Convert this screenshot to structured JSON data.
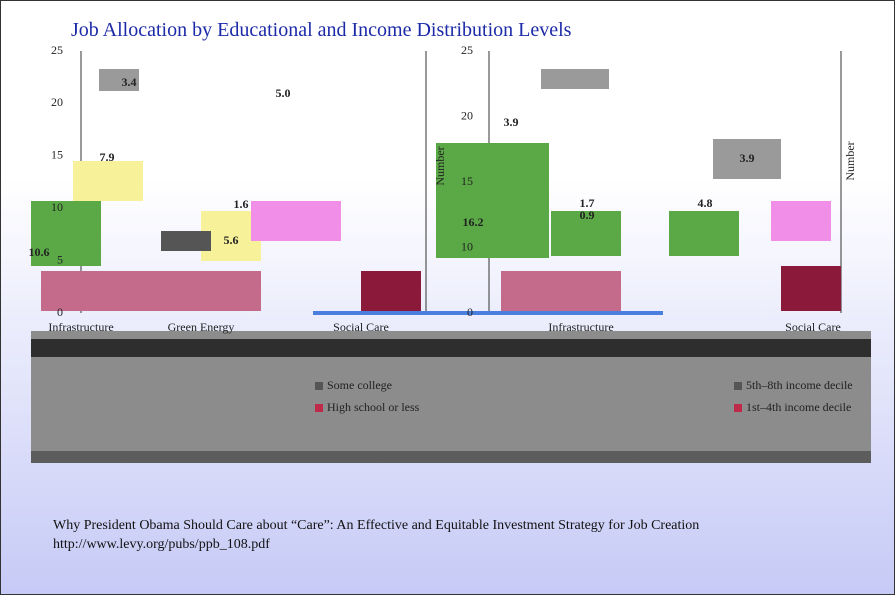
{
  "title": "Job Allocation  by Educational and Income Distribution Levels",
  "panels": [
    {
      "yticks": [
        "25",
        "20",
        "15",
        "10",
        "5",
        "0"
      ],
      "axis_label": "Number",
      "categories": [
        "Infrastructure",
        "Green Energy",
        "Social Care"
      ],
      "value_labels": [
        "3.4",
        "5.0",
        "7.9",
        "1.6",
        "5.6",
        "10.6"
      ]
    },
    {
      "yticks": [
        "25",
        "20",
        "15",
        "10",
        "0"
      ],
      "axis_label": "Number",
      "categories": [
        "Infrastructure",
        "Social Care"
      ],
      "value_labels": [
        "3.9",
        "16.2",
        "1.7",
        "0.9",
        "4.8",
        "3.9"
      ]
    }
  ],
  "legend": [
    "Some college",
    "High school or less",
    "5th–8th income decile",
    "1st–4th income decile"
  ],
  "citation": {
    "title": "Why President Obama Should Care about “Care”: An Effective and Equitable Investment Strategy for Job Creation",
    "url": "http://www.levy.org/pubs/ppb_108.pdf"
  }
}
